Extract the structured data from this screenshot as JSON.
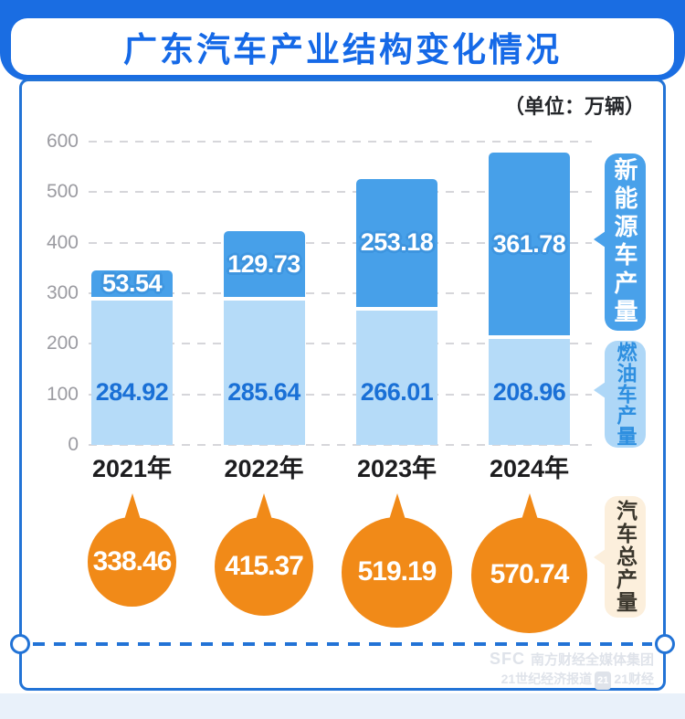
{
  "header": {
    "title": "广东汽车产业结构变化情况"
  },
  "unit_label": "（单位：万辆）",
  "chart_data": {
    "type": "bar",
    "stacked": true,
    "title": "广东汽车产业结构变化情况",
    "unit": "万辆",
    "categories": [
      "2021年",
      "2022年",
      "2023年",
      "2024年"
    ],
    "series": [
      {
        "name": "燃油车产量",
        "values": [
          284.92,
          285.64,
          266.01,
          208.96
        ],
        "color": "#b5dbf8"
      },
      {
        "name": "新能源车产量",
        "values": [
          53.54,
          129.73,
          253.18,
          361.78
        ],
        "color": "#47a0e9"
      }
    ],
    "totals": {
      "name": "汽车总产量",
      "values": [
        338.46,
        415.37,
        519.19,
        570.74
      ],
      "color": "#f18a18"
    },
    "yticks": [
      600,
      500,
      400,
      300,
      200,
      100,
      0
    ],
    "ylim": [
      0,
      600
    ],
    "grid": "horizontal-dashed",
    "legend_position": "right"
  },
  "legend": {
    "nev": "新能源车产量",
    "fuel": "燃油车产量",
    "total": "汽车总产量"
  },
  "watermark": {
    "sfc": "SFC",
    "line1": "南方财经全媒体集团",
    "line2_left": "21世纪经济报道",
    "badge": "21",
    "line2_right": "21财经"
  },
  "colors": {
    "band_blue": "#1a6de2",
    "title_blue": "#1569e7",
    "card_border": "#2273d6",
    "bar_dark": "#47a0e9",
    "bar_light": "#b5dbf8",
    "value_blue": "#1a70d6",
    "orange": "#f18a18",
    "cream": "#fcefdc"
  }
}
